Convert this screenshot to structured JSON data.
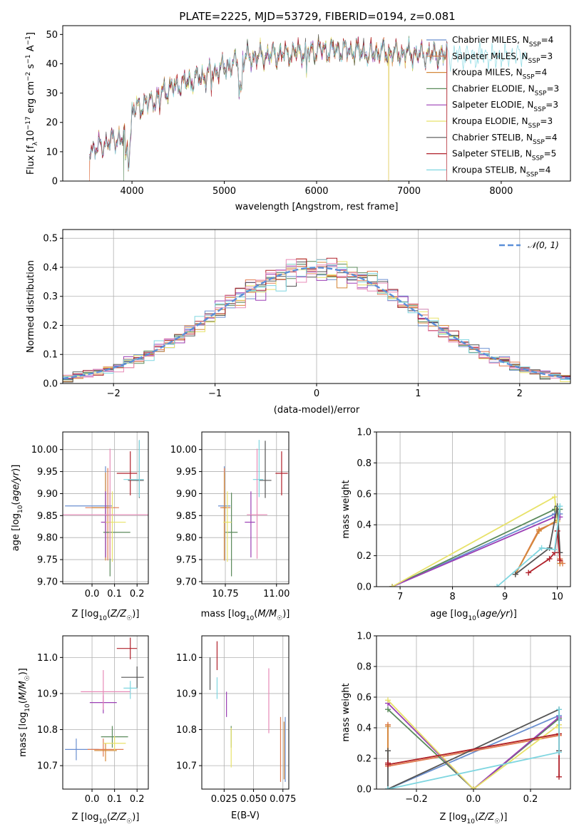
{
  "figure": {
    "title": "PLATE=2225, MJD=53729, FIBERID=0194, z=0.081"
  },
  "model_colors": [
    "#6a8fd0",
    "#e07b52",
    "#d4883a",
    "#5b8a5b",
    "#9b3fb5",
    "#e8e26a",
    "#555555",
    "#b0202a",
    "#7fd6e0"
  ],
  "chart_data": [
    {
      "id": "spectrum",
      "type": "line",
      "xlabel": "wavelength [Angstrom, rest frame]",
      "ylabel": "Flux [f_λ 10^-17 erg cm^-2 s^-1 A^-1]",
      "xlim": [
        3250,
        8750
      ],
      "ylim": [
        0,
        53
      ],
      "xticks": [
        4000,
        5000,
        6000,
        7000,
        8000
      ],
      "yticks": [
        0,
        10,
        20,
        30,
        40,
        50
      ],
      "grid": false,
      "legend_position": "upper-right",
      "series": [
        {
          "name": "Chabrier MILES, N_SSP=4",
          "range": [
            3540,
            7410
          ],
          "drops": []
        },
        {
          "name": "Salpeter MILES, N_SSP=3",
          "range": [
            3540,
            7410
          ],
          "drops": [
            3540
          ]
        },
        {
          "name": "Kroupa MILES, N_SSP=4",
          "range": [
            3540,
            7410
          ],
          "drops": [
            6780
          ]
        },
        {
          "name": "Chabrier ELODIE, N_SSP=3",
          "range": [
            3910,
            7410
          ],
          "drops": [
            3910
          ]
        },
        {
          "name": "Salpeter ELODIE, N_SSP=3",
          "range": [
            3540,
            7410
          ],
          "drops": []
        },
        {
          "name": "Kroupa ELODIE, N_SSP=3",
          "range": [
            3910,
            7410
          ],
          "drops": [
            6780
          ]
        },
        {
          "name": "Chabrier STELIB, N_SSP=4",
          "range": [
            3540,
            7410
          ],
          "drops": []
        },
        {
          "name": "Salpeter STELIB, N_SSP=5",
          "range": [
            3540,
            7410
          ],
          "drops": [
            7410
          ]
        },
        {
          "name": "Kroupa STELIB, N_SSP=4",
          "range": [
            3540,
            8280
          ],
          "drops": []
        }
      ]
    },
    {
      "id": "residuals",
      "type": "histogram",
      "xlabel": "(data-model)/error",
      "ylabel": "Normed distribution",
      "xlim": [
        -2.5,
        2.5
      ],
      "ylim": [
        0,
        0.53
      ],
      "xticks": [
        -2,
        -1,
        0,
        1,
        2
      ],
      "yticks": [
        0.0,
        0.1,
        0.2,
        0.3,
        0.4,
        0.5
      ],
      "grid": true,
      "legend": "𝒩(0, 1)",
      "legend_position": "upper-right",
      "bin_width": 0.1,
      "bin_range": [
        -2.5,
        2.5
      ],
      "reference": "normal(0,1)"
    },
    {
      "id": "age_vs_Z",
      "type": "errorbar",
      "xlabel": "Z [log10(Z/Z☉)]",
      "ylabel": "age  [log10(age/yr)]",
      "xlim": [
        -0.13,
        0.25
      ],
      "ylim": [
        9.695,
        10.04
      ],
      "xticks": [
        0.0,
        0.1,
        0.2
      ],
      "yticks": [
        9.7,
        9.75,
        9.8,
        9.85,
        9.9,
        9.95,
        10.0
      ],
      "grid": true,
      "points": [
        {
          "x": 0.06,
          "xerr": [
            0.18,
            0.03
          ],
          "y": 9.872,
          "yerr": [
            0.12,
            0.09
          ]
        },
        {
          "x": 0.07,
          "xerr": [
            0.1,
            0.05
          ],
          "y": 9.868,
          "yerr": [
            0.12,
            0.09
          ]
        },
        {
          "x": 0.06,
          "xerr": [
            0.06,
            0.02
          ],
          "y": 9.868,
          "yerr": [
            0.12,
            0.08
          ]
        },
        {
          "x": 0.08,
          "xerr": [
            0.03,
            0.09
          ],
          "y": 9.812,
          "yerr": [
            0.1,
            0.09
          ]
        },
        {
          "x": 0.06,
          "xerr": [
            0.02,
            0.02
          ],
          "y": 9.835,
          "yerr": [
            0.08,
            0.07
          ]
        },
        {
          "x": 0.09,
          "xerr": [
            0.03,
            0.06
          ],
          "y": 9.835,
          "yerr": [
            0.09,
            0.07
          ]
        },
        {
          "x": 0.21,
          "xerr": [
            0.05,
            0.02
          ],
          "y": 9.93,
          "yerr": [
            0.04,
            0.09
          ]
        },
        {
          "x": 0.17,
          "xerr": [
            0.06,
            0.03
          ],
          "y": 9.946,
          "yerr": [
            0.05,
            0.05
          ]
        },
        {
          "x": 0.21,
          "xerr": [
            0.07,
            0.02
          ],
          "y": 9.932,
          "yerr": [
            0.04,
            0.09
          ]
        },
        {
          "x": 0.08,
          "xerr": [
            0.21,
            0.2
          ],
          "y": 9.852,
          "yerr": [
            0.1,
            0.15
          ]
        }
      ],
      "point_colors": [
        "#6a8fd0",
        "#e07b52",
        "#d4883a",
        "#5b8a5b",
        "#9b3fb5",
        "#e8e26a",
        "#555555",
        "#b0202a",
        "#7fd6e0",
        "#e88bb8"
      ]
    },
    {
      "id": "age_vs_mass",
      "type": "errorbar",
      "xlabel": "mass [log10(M/M☉)]",
      "xlim": [
        10.635,
        11.06
      ],
      "ylim": [
        9.695,
        10.04
      ],
      "xticks": [
        10.75,
        11.0
      ],
      "yticks": [
        9.7,
        9.75,
        9.8,
        9.85,
        9.9,
        9.95,
        10.0
      ],
      "grid": true,
      "points": [
        {
          "x": 10.745,
          "xerr": [
            0.03,
            0.03
          ],
          "y": 9.872,
          "yerr": [
            0.12,
            0.09
          ]
        },
        {
          "x": 10.745,
          "xerr": [
            0.02,
            0.03
          ],
          "y": 9.868,
          "yerr": [
            0.12,
            0.09
          ]
        },
        {
          "x": 10.745,
          "xerr": [
            0.01,
            0.01
          ],
          "y": 9.868,
          "yerr": [
            0.12,
            0.08
          ]
        },
        {
          "x": 10.78,
          "xerr": [
            0.03,
            0.03
          ],
          "y": 9.812,
          "yerr": [
            0.1,
            0.09
          ]
        },
        {
          "x": 10.875,
          "xerr": [
            0.03,
            0.02
          ],
          "y": 9.835,
          "yerr": [
            0.08,
            0.07
          ]
        },
        {
          "x": 10.76,
          "xerr": [
            0.02,
            0.02
          ],
          "y": 9.835,
          "yerr": [
            0.09,
            0.07
          ]
        },
        {
          "x": 10.945,
          "xerr": [
            0.03,
            0.03
          ],
          "y": 9.93,
          "yerr": [
            0.04,
            0.09
          ]
        },
        {
          "x": 11.025,
          "xerr": [
            0.03,
            0.03
          ],
          "y": 9.946,
          "yerr": [
            0.05,
            0.05
          ]
        },
        {
          "x": 10.915,
          "xerr": [
            0.03,
            0.02
          ],
          "y": 9.932,
          "yerr": [
            0.04,
            0.09
          ]
        },
        {
          "x": 10.905,
          "xerr": [
            0.05,
            0.05
          ],
          "y": 9.852,
          "yerr": [
            0.1,
            0.15
          ]
        }
      ],
      "point_colors": [
        "#6a8fd0",
        "#e07b52",
        "#d4883a",
        "#5b8a5b",
        "#9b3fb5",
        "#e8e26a",
        "#555555",
        "#b0202a",
        "#7fd6e0",
        "#e88bb8"
      ]
    },
    {
      "id": "massweight_vs_age",
      "type": "line",
      "xlabel": "age  [log10(age/yr)]",
      "ylabel": "mass weight",
      "xlim": [
        6.55,
        10.25
      ],
      "ylim": [
        0,
        1
      ],
      "xticks": [
        7,
        8,
        9,
        10
      ],
      "yticks": [
        0.0,
        0.2,
        0.4,
        0.6,
        0.8,
        1.0
      ],
      "grid": true,
      "series": [
        {
          "x": [
            6.85,
            9.95,
            10.05
          ],
          "y": [
            0.0,
            0.47,
            0.47
          ]
        },
        {
          "x": [
            9.2,
            9.65,
            10.0,
            10.05,
            10.1
          ],
          "y": [
            0.08,
            0.37,
            0.42,
            0.18,
            0.15
          ]
        },
        {
          "x": [
            9.2,
            9.65,
            10.0,
            10.05
          ],
          "y": [
            0.08,
            0.36,
            0.43,
            0.15
          ]
        },
        {
          "x": [
            6.85,
            9.95,
            10.05
          ],
          "y": [
            0.0,
            0.5,
            0.5
          ]
        },
        {
          "x": [
            6.85,
            9.95,
            10.05
          ],
          "y": [
            0.0,
            0.45,
            0.45
          ]
        },
        {
          "x": [
            6.85,
            9.95,
            10.0
          ],
          "y": [
            0.0,
            0.58,
            0.42
          ]
        },
        {
          "x": [
            9.2,
            9.85,
            10.0,
            10.05
          ],
          "y": [
            0.08,
            0.25,
            0.52,
            0.22
          ]
        },
        {
          "x": [
            9.45,
            9.85,
            9.95,
            10.0,
            10.05
          ],
          "y": [
            0.09,
            0.18,
            0.22,
            0.36,
            0.17
          ]
        },
        {
          "x": [
            8.85,
            9.7,
            9.95,
            10.05
          ],
          "y": [
            0.0,
            0.25,
            0.24,
            0.52
          ]
        }
      ]
    },
    {
      "id": "mass_vs_Z",
      "type": "errorbar",
      "xlabel": "Z [log10(Z/Z☉)]",
      "ylabel": "mass [log10(M/M☉)]",
      "xlim": [
        -0.13,
        0.25
      ],
      "ylim": [
        10.635,
        11.06
      ],
      "xticks": [
        0.0,
        0.1,
        0.2
      ],
      "yticks": [
        10.7,
        10.8,
        10.9,
        11.0
      ],
      "grid": true,
      "points": [
        {
          "x": -0.07,
          "xerr": [
            0.05,
            0.1
          ],
          "y": 10.745,
          "yerr": [
            0.03,
            0.03
          ]
        },
        {
          "x": 0.05,
          "xerr": [
            0.07,
            0.09
          ],
          "y": 10.745,
          "yerr": [
            0.02,
            0.03
          ]
        },
        {
          "x": 0.06,
          "xerr": [
            0.05,
            0.05
          ],
          "y": 10.742,
          "yerr": [
            0.03,
            0.02
          ]
        },
        {
          "x": 0.09,
          "xerr": [
            0.05,
            0.07
          ],
          "y": 10.78,
          "yerr": [
            0.03,
            0.03
          ]
        },
        {
          "x": 0.05,
          "xerr": [
            0.06,
            0.06
          ],
          "y": 10.875,
          "yerr": [
            0.03,
            0.02
          ]
        },
        {
          "x": 0.1,
          "xerr": [
            0.05,
            0.05
          ],
          "y": 10.762,
          "yerr": [
            0.02,
            0.02
          ]
        },
        {
          "x": 0.2,
          "xerr": [
            0.07,
            0.03
          ],
          "y": 10.945,
          "yerr": [
            0.03,
            0.03
          ]
        },
        {
          "x": 0.17,
          "xerr": [
            0.06,
            0.03
          ],
          "y": 11.025,
          "yerr": [
            0.03,
            0.03
          ]
        },
        {
          "x": 0.17,
          "xerr": [
            0.03,
            0.03
          ],
          "y": 10.915,
          "yerr": [
            0.03,
            0.02
          ]
        },
        {
          "x": 0.05,
          "xerr": [
            0.1,
            0.12
          ],
          "y": 10.905,
          "yerr": [
            0.05,
            0.06
          ]
        }
      ],
      "point_colors": [
        "#6a8fd0",
        "#e07b52",
        "#d4883a",
        "#5b8a5b",
        "#9b3fb5",
        "#e8e26a",
        "#555555",
        "#b0202a",
        "#7fd6e0",
        "#e88bb8"
      ]
    },
    {
      "id": "mass_vs_EBV",
      "type": "errorbar",
      "xlabel": "E(B-V)",
      "xlim": [
        0.006,
        0.08
      ],
      "ylim": [
        10.635,
        11.06
      ],
      "xticks": [
        0.025,
        0.05,
        0.075
      ],
      "yticks": [
        10.7,
        10.8,
        10.9,
        11.0
      ],
      "grid": true,
      "points": [
        {
          "x": 0.077,
          "y": 10.745,
          "yerr": [
            0.09,
            0.09
          ]
        },
        {
          "x": 0.073,
          "y": 10.745,
          "yerr": [
            0.09,
            0.09
          ]
        },
        {
          "x": 0.076,
          "y": 10.742,
          "yerr": [
            0.08,
            0.08
          ]
        },
        {
          "x": 0.031,
          "y": 10.78,
          "yerr": [
            0.03,
            0.03
          ]
        },
        {
          "x": 0.027,
          "y": 10.875,
          "yerr": [
            0.04,
            0.03
          ]
        },
        {
          "x": 0.031,
          "y": 10.745,
          "yerr": [
            0.05,
            0.06
          ]
        },
        {
          "x": 0.013,
          "y": 10.95,
          "yerr": [
            0.04,
            0.05
          ]
        },
        {
          "x": 0.019,
          "y": 11.005,
          "yerr": [
            0.04,
            0.04
          ]
        },
        {
          "x": 0.019,
          "y": 10.915,
          "yerr": [
            0.03,
            0.03
          ]
        },
        {
          "x": 0.063,
          "y": 10.88,
          "yerr": [
            0.09,
            0.09
          ]
        }
      ],
      "point_colors": [
        "#6a8fd0",
        "#e07b52",
        "#d4883a",
        "#5b8a5b",
        "#9b3fb5",
        "#e8e26a",
        "#555555",
        "#b0202a",
        "#7fd6e0",
        "#e88bb8"
      ]
    },
    {
      "id": "massweight_vs_Z",
      "type": "line",
      "xlabel": "Z [log10(Z/Z☉)]",
      "ylabel": "mass weight",
      "xlim": [
        -0.34,
        0.34
      ],
      "ylim": [
        0,
        1
      ],
      "xticks": [
        -0.2,
        0.0,
        0.2
      ],
      "yticks": [
        0.0,
        0.2,
        0.4,
        0.6,
        0.8,
        1.0
      ],
      "grid": true,
      "series": [
        {
          "x": [
            -0.3,
            0.3,
            0.3
          ],
          "y": [
            0.0,
            0.48,
            0.45
          ]
        },
        {
          "x": [
            -0.3,
            -0.3,
            0.3,
            0.3
          ],
          "y": [
            0.42,
            0.15,
            0.35,
            0.36
          ]
        },
        {
          "x": [
            -0.3,
            -0.3,
            0.3,
            0.3
          ],
          "y": [
            0.41,
            0.16,
            0.36,
            0.36
          ]
        },
        {
          "x": [
            -0.3,
            0.0,
            0.3
          ],
          "y": [
            0.52,
            0.0,
            0.46
          ]
        },
        {
          "x": [
            -0.3,
            0.0,
            0.3,
            0.3
          ],
          "y": [
            0.56,
            0.0,
            0.47,
            0.42
          ]
        },
        {
          "x": [
            -0.3,
            0.0,
            0.3,
            0.3
          ],
          "y": [
            0.58,
            0.0,
            0.42,
            0.4
          ]
        },
        {
          "x": [
            -0.3,
            -0.3,
            0.3,
            0.3
          ],
          "y": [
            0.25,
            0.0,
            0.52,
            0.25
          ]
        },
        {
          "x": [
            -0.3,
            -0.3,
            0.3,
            0.3
          ],
          "y": [
            0.17,
            0.16,
            0.36,
            0.08
          ]
        },
        {
          "x": [
            -0.3,
            -0.3,
            0.3,
            0.3
          ],
          "y": [
            0.0,
            0.0,
            0.24,
            0.52
          ]
        }
      ]
    }
  ]
}
